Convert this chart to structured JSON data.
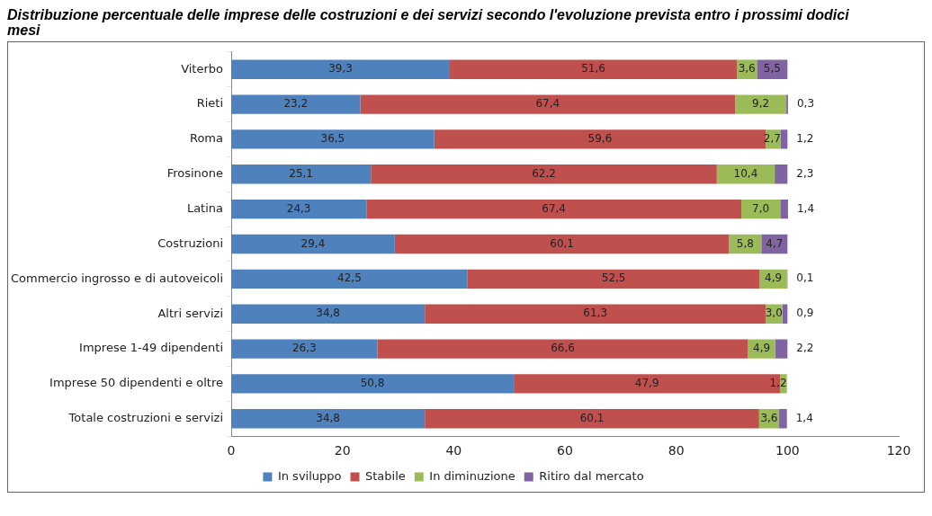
{
  "chart_data": {
    "type": "bar",
    "orientation": "horizontal",
    "stacked": true,
    "title": "Distribuzione percentuale delle imprese delle costruzioni e dei servizi secondo l'evoluzione prevista entro i prossimi dodici mesi",
    "categories": [
      "Viterbo",
      "Rieti",
      "Roma",
      "Frosinone",
      "Latina",
      "Costruzioni",
      "Commercio ingrosso e di autoveicoli",
      "Altri servizi",
      "Imprese 1-49 dipendenti",
      "Imprese 50 dipendenti e oltre",
      "Totale costruzioni e servizi"
    ],
    "series": [
      {
        "name": "In sviluppo",
        "color": "#4f81bd",
        "values": [
          39.3,
          23.2,
          36.5,
          25.1,
          24.3,
          29.4,
          42.5,
          34.8,
          26.3,
          50.8,
          34.8
        ],
        "value_labels": [
          "39,3",
          "23,2",
          "36,5",
          "25,1",
          "24,3",
          "29,4",
          "42,5",
          "34,8",
          "26,3",
          "50,8",
          "34,8"
        ]
      },
      {
        "name": "Stabile",
        "color": "#c0504d",
        "values": [
          51.6,
          67.4,
          59.6,
          62.2,
          67.4,
          60.1,
          52.5,
          61.3,
          66.6,
          47.9,
          60.1
        ],
        "value_labels": [
          "51,6",
          "67,4",
          "59,6",
          "62,2",
          "67,4",
          "60,1",
          "52,5",
          "61,3",
          "66,6",
          "47,9",
          "60,1"
        ]
      },
      {
        "name": "In diminuzione",
        "color": "#9bbb59",
        "values": [
          3.6,
          9.2,
          2.7,
          10.4,
          7.0,
          5.8,
          4.9,
          3.0,
          4.9,
          1.2,
          3.6
        ],
        "value_labels": [
          "3,6",
          "9,2",
          "2,7",
          "10,4",
          "7,0",
          "5,8",
          "4,9",
          "3,0",
          "4,9",
          "1,2",
          "3,6"
        ]
      },
      {
        "name": "Ritiro dal mercato",
        "color": "#8064a2",
        "values": [
          5.5,
          0.3,
          1.2,
          2.3,
          1.4,
          4.7,
          0.1,
          0.9,
          2.2,
          null,
          1.4
        ],
        "value_labels": [
          "5,5",
          "0,3",
          "1,2",
          "2,3",
          "1,4",
          "4,7",
          "0,1",
          "0,9",
          "2,2",
          null,
          "1,4"
        ]
      }
    ],
    "xlim": [
      0,
      120
    ],
    "xticks": [
      0,
      20,
      40,
      60,
      80,
      100,
      120
    ],
    "grid": false,
    "legend": "bottom"
  }
}
